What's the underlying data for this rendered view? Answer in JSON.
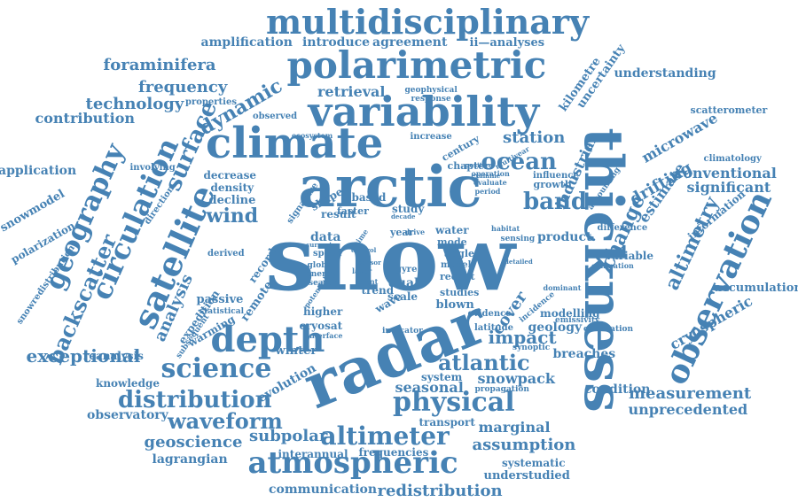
{
  "cloud": {
    "color": "#4682b4",
    "background": "#ffffff",
    "words": [
      {
        "id": "snow",
        "text": "snow"
      },
      {
        "id": "arctic",
        "text": "arctic"
      },
      {
        "id": "radar",
        "text": "radar"
      },
      {
        "id": "thickness",
        "text": "thickness"
      },
      {
        "id": "climate",
        "text": "climate"
      },
      {
        "id": "variability",
        "text": "variability"
      },
      {
        "id": "polarimetric",
        "text": "polarimetric"
      },
      {
        "id": "multidisciplinary",
        "text": "multidisciplinary"
      },
      {
        "id": "satellite",
        "text": "satellite"
      },
      {
        "id": "observation",
        "text": "observation"
      },
      {
        "id": "depth",
        "text": "depth"
      },
      {
        "id": "atmospheric",
        "text": "atmospheric"
      },
      {
        "id": "physical",
        "text": "physical"
      },
      {
        "id": "science",
        "text": "science"
      },
      {
        "id": "altimeter",
        "text": "altimeter"
      },
      {
        "id": "circulation",
        "text": "circulation"
      },
      {
        "id": "geography",
        "text": "geography"
      },
      {
        "id": "distribution",
        "text": "distribution"
      },
      {
        "id": "ocean",
        "text": "ocean"
      },
      {
        "id": "waveform",
        "text": "waveform"
      },
      {
        "id": "atlantic",
        "text": "atlantic"
      },
      {
        "id": "surface",
        "text": "surface"
      },
      {
        "id": "band",
        "text": "band"
      },
      {
        "id": "altimetry",
        "text": "altimetry"
      },
      {
        "id": "wind",
        "text": "wind"
      },
      {
        "id": "change",
        "text": "change"
      },
      {
        "id": "dynamic",
        "text": "dynamic"
      },
      {
        "id": "impact",
        "text": "impact"
      },
      {
        "id": "backscatter",
        "text": "backscatter"
      },
      {
        "id": "exceptional",
        "text": "exceptional"
      },
      {
        "id": "analysis",
        "text": "analysis"
      },
      {
        "id": "drifting",
        "text": "drifting"
      },
      {
        "id": "microwave",
        "text": "microwave"
      },
      {
        "id": "cryospheric",
        "text": "cryospheric"
      },
      {
        "id": "measurement",
        "text": "measurement"
      },
      {
        "id": "unprecedented",
        "text": "unprecedented"
      },
      {
        "id": "geoscience",
        "text": "geoscience"
      },
      {
        "id": "subpolar",
        "text": "subpolar"
      },
      {
        "id": "marginal",
        "text": "marginal"
      },
      {
        "id": "assumption",
        "text": "assumption"
      },
      {
        "id": "redistribution",
        "text": "redistribution"
      },
      {
        "id": "communication",
        "text": "communication"
      },
      {
        "id": "foraminifera",
        "text": "foraminifera"
      },
      {
        "id": "frequency",
        "text": "frequency"
      },
      {
        "id": "technology",
        "text": "technology"
      },
      {
        "id": "contribution",
        "text": "contribution"
      },
      {
        "id": "retrieval",
        "text": "retrieval"
      },
      {
        "id": "amplification",
        "text": "amplification"
      },
      {
        "id": "introduce",
        "text": "introduce"
      },
      {
        "id": "agreement",
        "text": "agreement"
      },
      {
        "id": "ii-analyses",
        "text": "ii—analyses"
      },
      {
        "id": "uncertainty",
        "text": "uncertainty"
      },
      {
        "id": "kilometre",
        "text": "kilometre"
      },
      {
        "id": "understanding",
        "text": "understanding"
      },
      {
        "id": "scatterometer",
        "text": "scatterometer"
      },
      {
        "id": "climatology",
        "text": "climatology"
      },
      {
        "id": "conventional",
        "text": "conventional"
      },
      {
        "id": "significant",
        "text": "significant"
      },
      {
        "id": "estimate",
        "text": "estimate"
      },
      {
        "id": "station",
        "text": "station"
      },
      {
        "id": "industrial",
        "text": "industrial"
      },
      {
        "id": "product",
        "text": "product."
      },
      {
        "id": "information",
        "text": "information"
      },
      {
        "id": "accumulation",
        "text": "accumulation"
      },
      {
        "id": "difference",
        "text": "difference"
      },
      {
        "id": "variable",
        "text": "variable"
      },
      {
        "id": "modelling",
        "text": "modelling"
      },
      {
        "id": "geology",
        "text": "geology"
      },
      {
        "id": "breaches",
        "text": "breaches"
      },
      {
        "id": "condition",
        "text": "condition"
      },
      {
        "id": "snowpack",
        "text": "snowpack"
      },
      {
        "id": "seasonal",
        "text": "seasonal"
      },
      {
        "id": "system",
        "text": "system"
      },
      {
        "id": "evolution",
        "text": "evolution"
      },
      {
        "id": "transport",
        "text": "transport"
      },
      {
        "id": "frequencies",
        "text": "frequencies"
      },
      {
        "id": "systematic",
        "text": "systematic"
      },
      {
        "id": "understudied",
        "text": "understudied"
      },
      {
        "id": "lagrangian",
        "text": "lagrangian"
      },
      {
        "id": "interannual",
        "text": "interannual"
      },
      {
        "id": "observatory",
        "text": "observatory"
      },
      {
        "id": "knowledge",
        "text": "knowledge"
      },
      {
        "id": "reanalysis",
        "text": "reanalysis"
      },
      {
        "id": "winter",
        "text": "winter"
      },
      {
        "id": "cryosat",
        "text": "cryosat"
      },
      {
        "id": "expedition",
        "text": "expedition"
      },
      {
        "id": "passive",
        "text": "passive"
      },
      {
        "id": "remote",
        "text": "remote"
      },
      {
        "id": "record",
        "text": "record"
      },
      {
        "id": "warming",
        "text": "warming"
      },
      {
        "id": "polarization",
        "text": "polarization"
      },
      {
        "id": "snowmodel",
        "text": "snowmodel"
      },
      {
        "id": "snowredistribution",
        "text": "snowredistribution"
      },
      {
        "id": "application",
        "text": "application"
      },
      {
        "id": "involving",
        "text": "involving"
      },
      {
        "id": "direction",
        "text": "direction"
      },
      {
        "id": "decrease",
        "text": "decrease"
      },
      {
        "id": "density",
        "text": "density"
      },
      {
        "id": "decline",
        "text": "decline"
      },
      {
        "id": "observed",
        "text": "observed"
      },
      {
        "id": "properties",
        "text": "properties"
      },
      {
        "id": "cover",
        "text": "cover"
      },
      {
        "id": "blown",
        "text": "blown"
      },
      {
        "id": "studies",
        "text": "studies"
      },
      {
        "id": "data",
        "text": "data"
      },
      {
        "id": "dual",
        "text": "dual"
      },
      {
        "id": "scale",
        "text": "scale"
      },
      {
        "id": "study",
        "text": "study"
      },
      {
        "id": "result",
        "text": "result"
      },
      {
        "id": "based",
        "text": "based"
      },
      {
        "id": "faster",
        "text": "faster"
      },
      {
        "id": "shape",
        "text": "shape"
      },
      {
        "id": "signature",
        "text": "signature"
      },
      {
        "id": "growth",
        "text": "growth"
      },
      {
        "id": "influence",
        "text": "influence"
      },
      {
        "id": "chapter",
        "text": "chapter"
      },
      {
        "id": "century",
        "text": "century"
      },
      {
        "id": "increase",
        "text": "increase"
      },
      {
        "id": "geophysical",
        "text": "geophysical"
      },
      {
        "id": "response",
        "text": "response"
      },
      {
        "id": "year",
        "text": "year"
      },
      {
        "id": "water",
        "text": "water"
      },
      {
        "id": "mode",
        "text": "mode"
      },
      {
        "id": "angle",
        "text": "angle"
      },
      {
        "id": "model",
        "text": "model"
      },
      {
        "id": "recent",
        "text": "recent"
      },
      {
        "id": "gyre",
        "text": "gyre"
      },
      {
        "id": "trend",
        "text": "trend"
      },
      {
        "id": "wave",
        "text": "wave"
      },
      {
        "id": "higher",
        "text": "higher"
      },
      {
        "id": "speed",
        "text": "speed"
      },
      {
        "id": "global",
        "text": "global"
      },
      {
        "id": "energy",
        "text": "energy"
      },
      {
        "id": "season",
        "text": "season"
      },
      {
        "id": "derived",
        "text": "derived"
      },
      {
        "id": "statistical",
        "text": "statistical"
      },
      {
        "id": "evidence",
        "text": "evidence"
      },
      {
        "id": "latitude",
        "text": "latitude"
      },
      {
        "id": "indicator",
        "text": "indicator"
      },
      {
        "id": "incidence",
        "text": "incidence"
      },
      {
        "id": "propagation",
        "text": "propagation"
      },
      {
        "id": "emissivity",
        "text": "emissivity"
      },
      {
        "id": "correlation",
        "text": "correlation"
      },
      {
        "id": "synoptic",
        "text": "synoptic"
      },
      {
        "id": "dominant",
        "text": "dominant"
      },
      {
        "id": "estimation",
        "text": "estimation"
      },
      {
        "id": "sensing",
        "text": "sensing"
      },
      {
        "id": "accounting",
        "text": "accounting"
      },
      {
        "id": "habitat",
        "text": "habitat"
      },
      {
        "id": "operation",
        "text": "operation"
      },
      {
        "id": "evaluate",
        "text": "evaluate"
      },
      {
        "id": "period",
        "text": "period"
      },
      {
        "id": "positive",
        "text": "positive"
      },
      {
        "id": "examine",
        "text": "examine"
      },
      {
        "id": "multiyear",
        "text": "multiyear"
      },
      {
        "id": "ecosystem",
        "text": "ecosystem"
      },
      {
        "id": "detailed",
        "text": "detailed"
      },
      {
        "id": "current",
        "text": "current"
      },
      {
        "id": "layer",
        "text": "layer"
      },
      {
        "id": "event",
        "text": "event"
      },
      {
        "id": "potential",
        "text": "potential"
      },
      {
        "id": "interface",
        "text": "interface"
      },
      {
        "id": "subsequent",
        "text": "subsequent"
      },
      {
        "id": "time",
        "text": "time"
      },
      {
        "id": "decade",
        "text": "decade"
      },
      {
        "id": "drive",
        "text": "drive"
      },
      {
        "id": "sensor",
        "text": "sensor"
      },
      {
        "id": "control",
        "text": "control"
      }
    ]
  }
}
